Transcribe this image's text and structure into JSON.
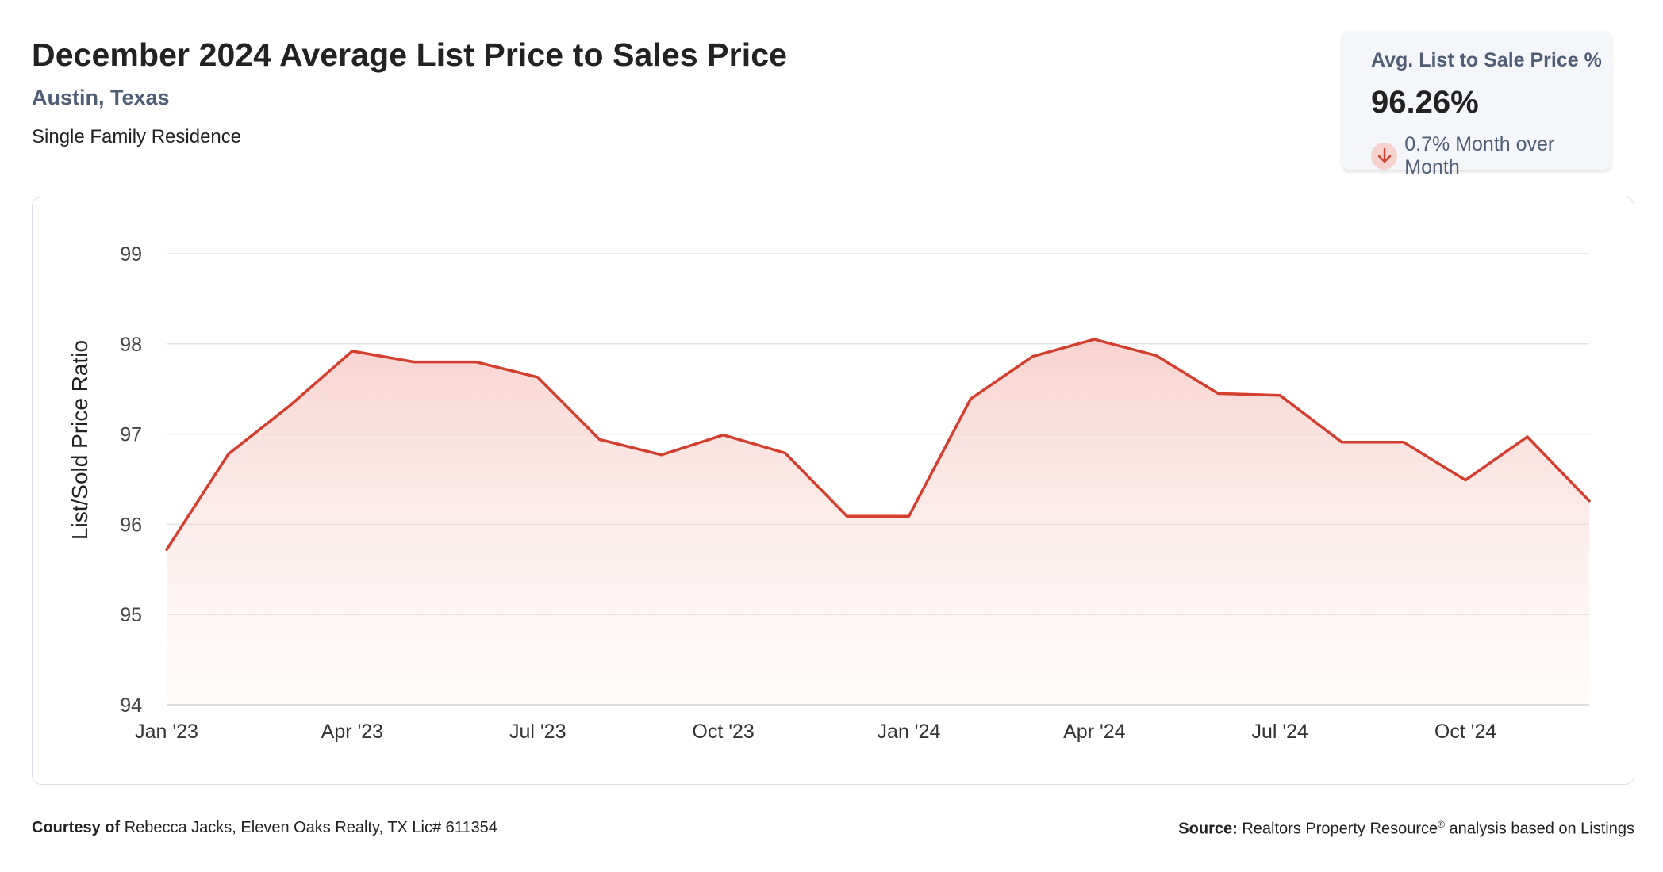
{
  "header": {
    "title": "December 2024 Average List Price to Sales Price",
    "location": "Austin, Texas",
    "property_type": "Single Family Residence"
  },
  "kpi": {
    "label": "Avg. List to Sale Price %",
    "value": "96.26%",
    "change": "0.7% Month over Month",
    "direction_icon": "arrow-down-icon",
    "direction_color": "#d33f2c"
  },
  "footer": {
    "courtesy_label": "Courtesy of",
    "courtesy_text": "Rebecca Jacks, Eleven Oaks Realty, TX Lic# 611354",
    "source_label": "Source:",
    "source_text": "Realtors Property Resource",
    "source_mark": "®",
    "source_suffix": "analysis based on Listings"
  },
  "chart_data": {
    "type": "area",
    "title": "",
    "xlabel": "",
    "ylabel": "List/Sold Price Ratio",
    "ylim": [
      94,
      99
    ],
    "yticks": [
      94,
      95,
      96,
      97,
      98,
      99
    ],
    "grid": true,
    "legend": "none",
    "line_color": "#d33f2c",
    "fill_color": "#f8d5d1",
    "x": [
      "Jan '23",
      "Feb '23",
      "Mar '23",
      "Apr '23",
      "May '23",
      "Jun '23",
      "Jul '23",
      "Aug '23",
      "Sep '23",
      "Oct '23",
      "Nov '23",
      "Dec '23",
      "Jan '24",
      "Feb '24",
      "Mar '24",
      "Apr '24",
      "May '24",
      "Jun '24",
      "Jul '24",
      "Aug '24",
      "Sep '24",
      "Oct '24",
      "Nov '24",
      "Dec '24"
    ],
    "xtick_labels": [
      "Jan '23",
      "Apr '23",
      "Jul '23",
      "Oct '23",
      "Jan '24",
      "Apr '24",
      "Jul '24",
      "Oct '24"
    ],
    "series": [
      {
        "values": [
          95.72,
          96.78,
          97.32,
          97.92,
          97.8,
          97.8,
          97.63,
          96.94,
          96.77,
          96.99,
          96.79,
          96.09,
          96.09,
          97.39,
          97.86,
          98.05,
          97.87,
          97.45,
          97.43,
          96.91,
          96.91,
          96.49,
          96.97,
          96.26
        ]
      }
    ]
  }
}
